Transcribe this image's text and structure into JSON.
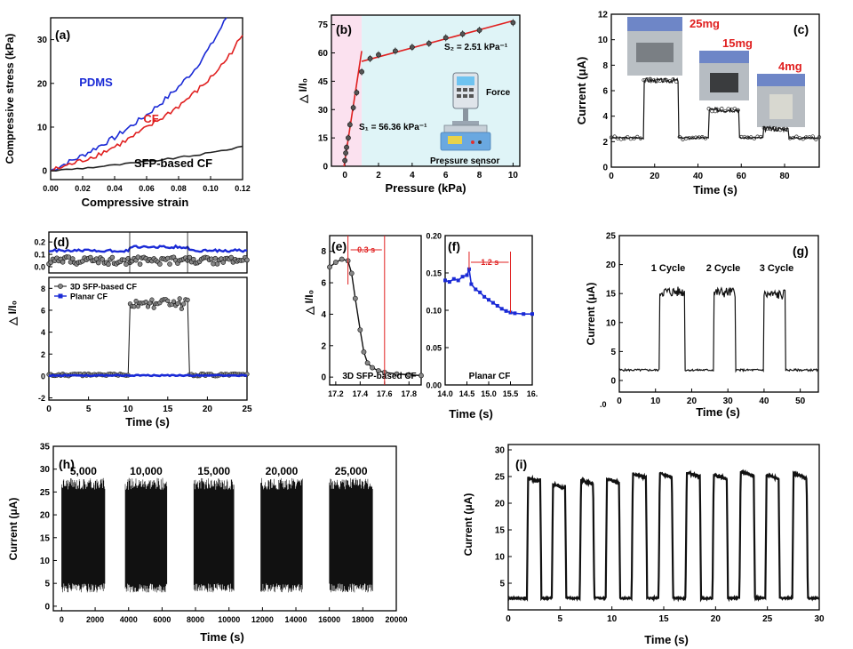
{
  "chart_data": [
    {
      "panel": "(a)",
      "type": "line",
      "title": "",
      "xlabel": "Compressive strain",
      "ylabel": "Compressive stress (kPa)",
      "xlim": [
        0,
        0.12
      ],
      "ylim": [
        -2,
        35
      ],
      "xticks": [
        "0.00",
        "0.02",
        "0.04",
        "0.06",
        "0.08",
        "0.10",
        "0.12"
      ],
      "yticks": [
        "0",
        "10",
        "20",
        "30"
      ],
      "series": [
        {
          "name": "PDMS",
          "color": "#1a2ad6",
          "x": [
            0,
            0.01,
            0.02,
            0.03,
            0.04,
            0.05,
            0.06,
            0.07,
            0.08,
            0.09,
            0.1,
            0.11
          ],
          "y": [
            0,
            1.8,
            3.5,
            5.6,
            7.6,
            10.2,
            12.8,
            15.8,
            19.2,
            23.2,
            28.5,
            35
          ]
        },
        {
          "name": "CF",
          "color": "#e02020",
          "x": [
            0,
            0.01,
            0.02,
            0.03,
            0.04,
            0.05,
            0.06,
            0.07,
            0.08,
            0.09,
            0.1,
            0.11,
            0.12
          ],
          "y": [
            0,
            1.2,
            2.4,
            3.8,
            5.5,
            7.5,
            9.8,
            12.2,
            14.8,
            17.8,
            21.2,
            25.5,
            31
          ]
        },
        {
          "name": "SFP-based CF",
          "color": "#222222",
          "x": [
            0,
            0.02,
            0.04,
            0.06,
            0.08,
            0.1,
            0.12
          ],
          "y": [
            0,
            0.6,
            1.3,
            2.1,
            3.0,
            4.1,
            5.6
          ]
        }
      ]
    },
    {
      "panel": "(b)",
      "type": "scatter",
      "title": "",
      "xlabel": "Pressure (kPa)",
      "ylabel": "△ I/I₀",
      "xlim": [
        -0.8,
        10.4
      ],
      "ylim": [
        0,
        80
      ],
      "xticks": [
        "0",
        "2",
        "4",
        "6",
        "8",
        "10"
      ],
      "yticks": [
        "0",
        "15",
        "30",
        "45",
        "60",
        "75"
      ],
      "points": {
        "x": [
          0,
          0.05,
          0.1,
          0.2,
          0.3,
          0.5,
          0.7,
          1.0,
          1.5,
          2,
          3,
          4,
          5,
          6,
          7,
          8,
          10
        ],
        "y": [
          3,
          7,
          10,
          15,
          22,
          31,
          39,
          50,
          57,
          59,
          61,
          63,
          65,
          68,
          70,
          72,
          76
        ]
      },
      "fit_low": {
        "x": [
          -0.05,
          1.0
        ],
        "y": [
          0,
          61
        ]
      },
      "fit_high": {
        "x": [
          1.0,
          10
        ],
        "y": [
          55.5,
          77
        ]
      },
      "annotations": {
        "s2": "S₂ = 2.51 kPa⁻¹",
        "s1": "S₁ = 56.36 kPa⁻¹",
        "force": "Force",
        "sensor": "Pressure sensor"
      }
    },
    {
      "panel": "(c)",
      "type": "line",
      "title": "",
      "xlabel": "Time (s)",
      "ylabel": "Current (μA)",
      "xlim": [
        0,
        96
      ],
      "ylim": [
        0,
        12
      ],
      "xticks": [
        "0",
        "20",
        "40",
        "60",
        "80"
      ],
      "yticks": [
        "0",
        "2",
        "4",
        "6",
        "8",
        "10",
        "12"
      ],
      "baseline": 2.3,
      "pulses": [
        {
          "start": 15,
          "end": 31,
          "level": 6.8,
          "label": "25mg"
        },
        {
          "start": 45,
          "end": 59,
          "level": 4.5,
          "label": "15mg"
        },
        {
          "start": 70,
          "end": 82,
          "level": 3.0,
          "label": "4mg"
        }
      ]
    },
    {
      "panel": "(d)",
      "type": "line",
      "title": "",
      "xlabel": "Time (s)",
      "ylabel": "△ I/I₀",
      "xlim": [
        0,
        25
      ],
      "ylim_top": [
        -0.05,
        0.28
      ],
      "ylim_bottom": [
        -2.2,
        9
      ],
      "xticks": [
        "0",
        "5",
        "10",
        "15",
        "20",
        "25"
      ],
      "yticks_top": [
        "0.0",
        "0.1",
        "0.2"
      ],
      "yticks_bottom": [
        "-2",
        "0",
        "2",
        "4",
        "6",
        "8"
      ],
      "legend": [
        "3D SFP-based CF",
        "Planar CF"
      ],
      "series": [
        {
          "name": "3D SFP-based CF",
          "color": "#222222",
          "on": [
            10.2,
            17.5
          ],
          "high": 6.5,
          "low": 0
        },
        {
          "name": "Planar CF",
          "color": "#1a2ad6",
          "on": [
            10.2,
            17.5
          ],
          "high": 0.15,
          "low": 0.05
        }
      ]
    },
    {
      "panel": "(e)",
      "type": "line",
      "title": "",
      "xlabel": "",
      "ylabel": "△ I/I₀",
      "xlim": [
        17.15,
        17.9
      ],
      "ylim": [
        -0.5,
        9
      ],
      "xticks": [
        "17.2",
        "17.4",
        "17.6",
        "17.8"
      ],
      "yticks": [
        "0",
        "2",
        "4",
        "6",
        "8"
      ],
      "x": [
        17.15,
        17.2,
        17.25,
        17.3,
        17.33,
        17.36,
        17.4,
        17.43,
        17.46,
        17.5,
        17.55,
        17.6,
        17.7,
        17.8,
        17.9
      ],
      "y": [
        7.0,
        7.3,
        7.5,
        7.4,
        6.6,
        5.0,
        3.0,
        1.6,
        0.9,
        0.6,
        0.4,
        0.3,
        0.2,
        0.15,
        0.1
      ],
      "annotation": "0.3 s",
      "label": "3D SFP-based CF"
    },
    {
      "panel": "(f)",
      "type": "line",
      "title": "",
      "xlabel": "Time (s)",
      "ylabel": "",
      "xlim": [
        14.0,
        16.0
      ],
      "ylim": [
        0,
        0.2
      ],
      "xticks": [
        "14.0",
        "14.5",
        "15.0",
        "15.5",
        "16."
      ],
      "yticks": [
        "0.00",
        "0.05",
        "0.10",
        "0.15",
        "0.20"
      ],
      "x": [
        14.0,
        14.1,
        14.2,
        14.3,
        14.4,
        14.5,
        14.55,
        14.6,
        14.7,
        14.8,
        14.9,
        15.0,
        15.1,
        15.2,
        15.3,
        15.4,
        15.5,
        15.6,
        15.8,
        16.0
      ],
      "y": [
        0.14,
        0.138,
        0.142,
        0.14,
        0.145,
        0.147,
        0.155,
        0.135,
        0.128,
        0.124,
        0.118,
        0.114,
        0.11,
        0.106,
        0.102,
        0.099,
        0.097,
        0.096,
        0.095,
        0.095
      ],
      "annotation": "1.2 s",
      "label": "Planar CF"
    },
    {
      "panel": "(g)",
      "type": "line",
      "title": "",
      "xlabel": "Time (s)",
      "ylabel": "Current (μA)",
      "xlim": [
        0,
        55
      ],
      "ylim": [
        -2,
        25
      ],
      "xticks": [
        "0",
        "10",
        "20",
        "30",
        "40",
        "50"
      ],
      "yticks": [
        "0",
        "5",
        "10",
        "15",
        "20",
        "25"
      ],
      "baseline": 1.8,
      "pulses": [
        {
          "start": 11,
          "end": 18,
          "level": 15.3,
          "label": "1 Cycle"
        },
        {
          "start": 26,
          "end": 32,
          "level": 15.2,
          "label": "2 Cycle"
        },
        {
          "start": 40,
          "end": 46,
          "level": 14.8,
          "label": "3 Cycle"
        }
      ],
      "corner_label": ".0"
    },
    {
      "panel": "(h)",
      "type": "area",
      "title": "",
      "xlabel": "Time (s)",
      "ylabel": "Current (μA)",
      "xlim": [
        -500,
        20000
      ],
      "ylim": [
        -1,
        35
      ],
      "xticks": [
        "0",
        "2000",
        "4000",
        "6000",
        "8000",
        "10000",
        "12000",
        "14000",
        "16000",
        "18000",
        "20000"
      ],
      "yticks": [
        "0",
        "5",
        "10",
        "15",
        "20",
        "25",
        "30",
        "35"
      ],
      "blocks": [
        {
          "start": 0,
          "end": 2600,
          "label": "5,000"
        },
        {
          "start": 3800,
          "end": 6300,
          "label": "10,000"
        },
        {
          "start": 7900,
          "end": 10300,
          "label": "15,000"
        },
        {
          "start": 11900,
          "end": 14400,
          "label": "20,000"
        },
        {
          "start": 16000,
          "end": 18600,
          "label": "25,000"
        }
      ],
      "range": [
        3,
        26
      ]
    },
    {
      "panel": "(i)",
      "type": "line",
      "title": "",
      "xlabel": "Time (s)",
      "ylabel": "Current (μA)",
      "xlim": [
        0,
        30
      ],
      "ylim": [
        0,
        31
      ],
      "xticks": [
        "0",
        "5",
        "10",
        "15",
        "20",
        "25",
        "30"
      ],
      "yticks": [
        "5",
        "10",
        "15",
        "20",
        "25",
        "30"
      ],
      "baseline": 2.2,
      "pulses": [
        {
          "start": 1.8,
          "end": 3.2,
          "level": 24.8
        },
        {
          "start": 4.2,
          "end": 5.6,
          "level": 23.6
        },
        {
          "start": 6.9,
          "end": 8.3,
          "level": 24.4
        },
        {
          "start": 9.4,
          "end": 10.8,
          "level": 24.6
        },
        {
          "start": 11.9,
          "end": 13.4,
          "level": 25.6
        },
        {
          "start": 14.5,
          "end": 15.9,
          "level": 25.6
        },
        {
          "start": 17.1,
          "end": 18.6,
          "level": 25.8
        },
        {
          "start": 19.7,
          "end": 21.2,
          "level": 25.4
        },
        {
          "start": 22.3,
          "end": 23.8,
          "level": 26.0
        },
        {
          "start": 24.8,
          "end": 26.2,
          "level": 25.4
        },
        {
          "start": 27.4,
          "end": 28.9,
          "level": 25.6
        }
      ]
    }
  ]
}
